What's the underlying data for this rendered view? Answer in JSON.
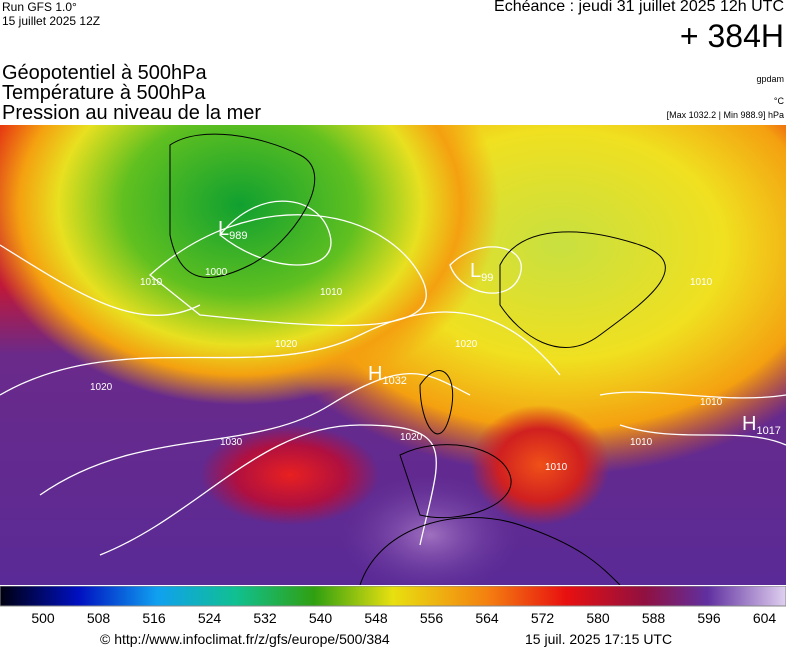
{
  "header": {
    "run": "Run GFS 1.0°",
    "run_date": "15 juillet 2025 12Z",
    "echeance": "Echéance : jeudi 31 juillet 2025 12h UTC",
    "lead": "+ 384H",
    "fields": [
      "Géopotentiel à 500hPa",
      "Température à 500hPa",
      "Pression au niveau de la mer"
    ],
    "units": [
      "gpdam",
      "°C"
    ],
    "extremes": "[Max 1032.2 | Min 988.9] hPa"
  },
  "map": {
    "centers": [
      {
        "letter": "L",
        "value": "989"
      },
      {
        "letter": "L",
        "value": "99"
      },
      {
        "letter": "H",
        "value": "1032"
      },
      {
        "letter": "H",
        "value": "1017"
      }
    ],
    "isobar_labels": [
      "1000",
      "1010",
      "1010",
      "1020",
      "1020",
      "1020",
      "1030",
      "1020",
      "1010",
      "1010",
      "1010",
      "1010"
    ]
  },
  "legend": {
    "ticks": [
      "500",
      "508",
      "516",
      "524",
      "532",
      "540",
      "548",
      "556",
      "564",
      "572",
      "580",
      "588",
      "596",
      "604"
    ]
  },
  "footer": {
    "source": "© http://www.infoclimat.fr/z/gfs/europe/500/384",
    "timestamp": "15 juil. 2025 17:15 UTC"
  }
}
